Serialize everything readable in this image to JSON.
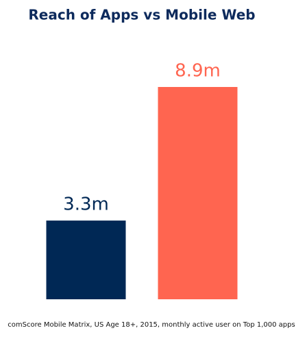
{
  "chart_data": {
    "type": "bar",
    "title": "Reach of Apps vs Mobile Web",
    "categories": [
      null,
      null
    ],
    "values": [
      3.3,
      8.9
    ],
    "value_labels": [
      "3.3m",
      "8.9m"
    ],
    "colors": [
      "#002855",
      "#ff6550"
    ],
    "source": "comScore Mobile Matrix, US Age 18+, 2015, monthly active user on Top 1,000 apps"
  }
}
